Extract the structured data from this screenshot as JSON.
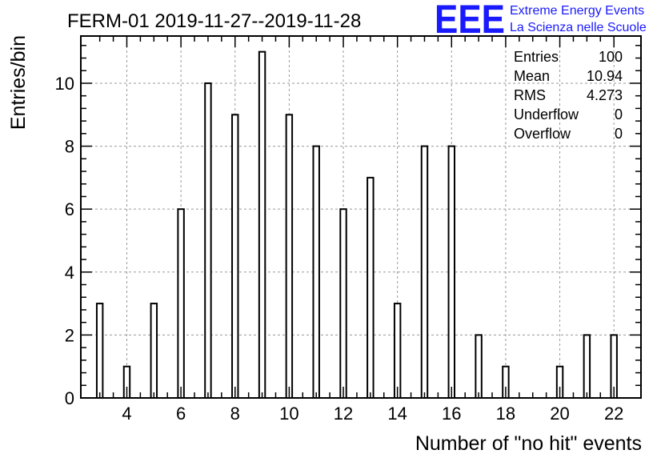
{
  "title": "FERM-01 2019-11-27--2019-11-28",
  "logo": {
    "mark": "EEE",
    "line1": "Extreme Energy Events",
    "line2": "La Scienza nelle Scuole",
    "color": "#1a1aff"
  },
  "stats": [
    {
      "label": "Entries",
      "value": "100"
    },
    {
      "label": "Mean",
      "value": "10.94"
    },
    {
      "label": "RMS",
      "value": "4.273"
    },
    {
      "label": "Underflow",
      "value": "0"
    },
    {
      "label": "Overflow",
      "value": "0"
    }
  ],
  "chart_data": {
    "type": "bar",
    "xlabel": "Number of \"no hit\" events",
    "ylabel": "Entries/bin",
    "xlim": [
      2.3,
      23
    ],
    "ylim": [
      0,
      11.5
    ],
    "xticks": [
      4,
      6,
      8,
      10,
      12,
      14,
      16,
      18,
      20,
      22
    ],
    "yticks": [
      0,
      2,
      4,
      6,
      8,
      10
    ],
    "grid": true,
    "x": [
      3,
      4,
      5,
      6,
      7,
      8,
      9,
      10,
      11,
      12,
      13,
      14,
      15,
      16,
      17,
      18,
      20,
      21,
      22
    ],
    "values": [
      3,
      1,
      3,
      6,
      10,
      9,
      11,
      9,
      8,
      6,
      7,
      3,
      8,
      8,
      2,
      1,
      1,
      2,
      2
    ],
    "bar_color": "#ffffff",
    "edge_color": "#000000"
  }
}
